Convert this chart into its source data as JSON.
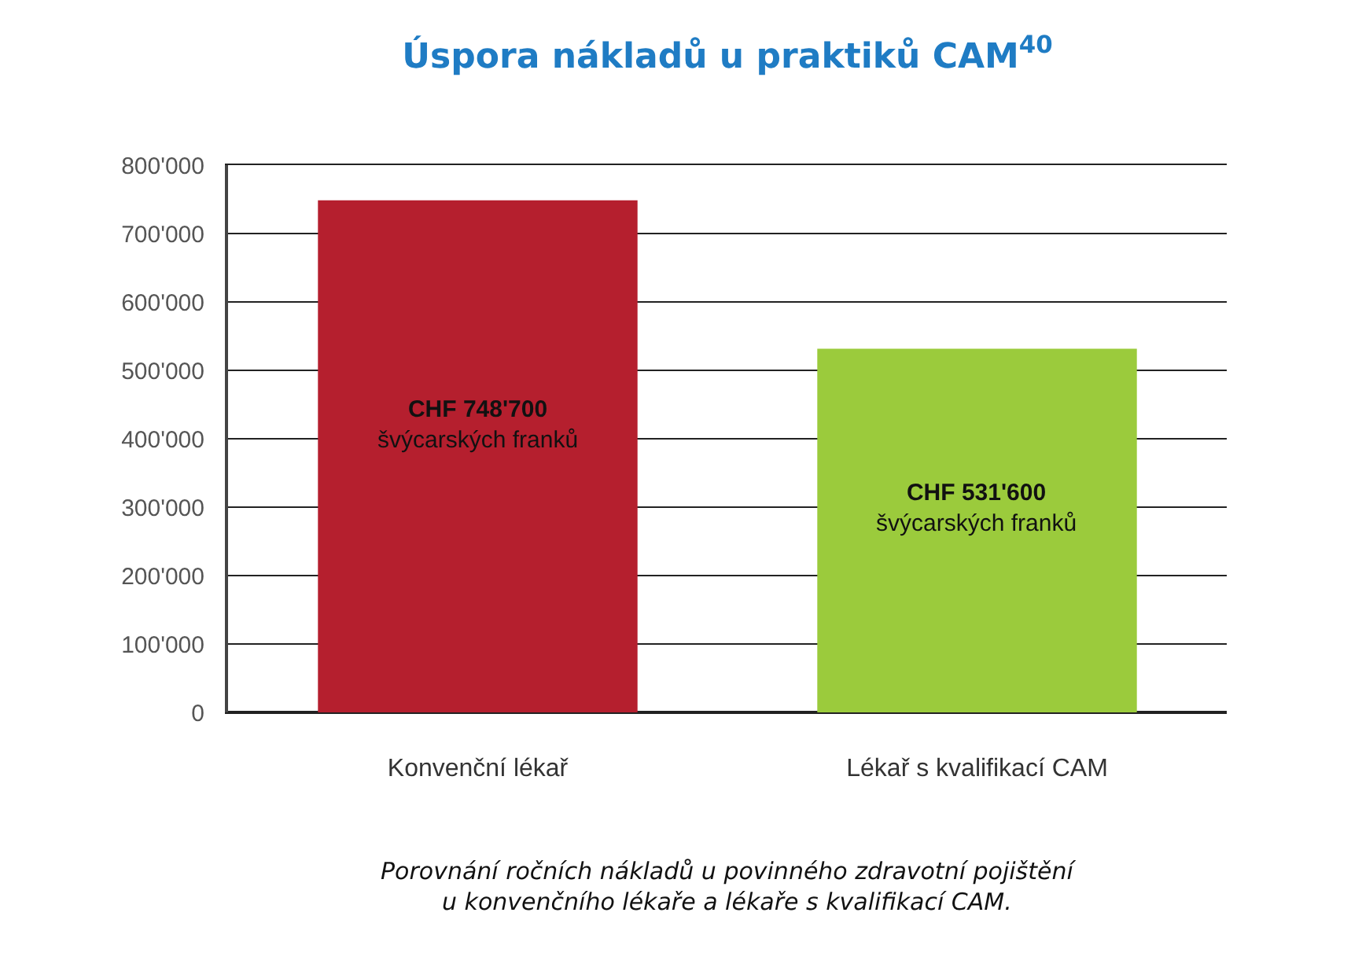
{
  "chart_data": {
    "type": "bar",
    "title": "Úspora nákladů u praktiků CAM$^{40}$",
    "categories": [
      "Konvenční lékař",
      "Lékař s kvalifikací CAM"
    ],
    "values": [
      748700,
      531600
    ],
    "colors": [
      "#b51f2e",
      "#9bcb3c"
    ],
    "value_labels": [
      "CHF 748'700\nšvýcarských franků",
      "CHF 531'600\nšvýcarských franků"
    ],
    "ylim": [
      0,
      800000
    ],
    "yticks": [
      {
        "value": 0,
        "label": "0"
      },
      {
        "value": 100000,
        "label": "100'000"
      },
      {
        "value": 200000,
        "label": "200'000"
      },
      {
        "value": 300000,
        "label": "300'000"
      },
      {
        "value": 400000,
        "label": "400'000"
      },
      {
        "value": 500000,
        "label": "500'000"
      },
      {
        "value": 600000,
        "label": "600'000"
      },
      {
        "value": 700000,
        "label": "700'000"
      },
      {
        "value": 800000,
        "label": "800'000"
      }
    ],
    "grid": "y",
    "annotations": [
      "Porovnání ročních nákladů u povinného zdravotní pojištění\nu konvenčního lékaře a lékaře s kvalifikací CAM."
    ]
  }
}
